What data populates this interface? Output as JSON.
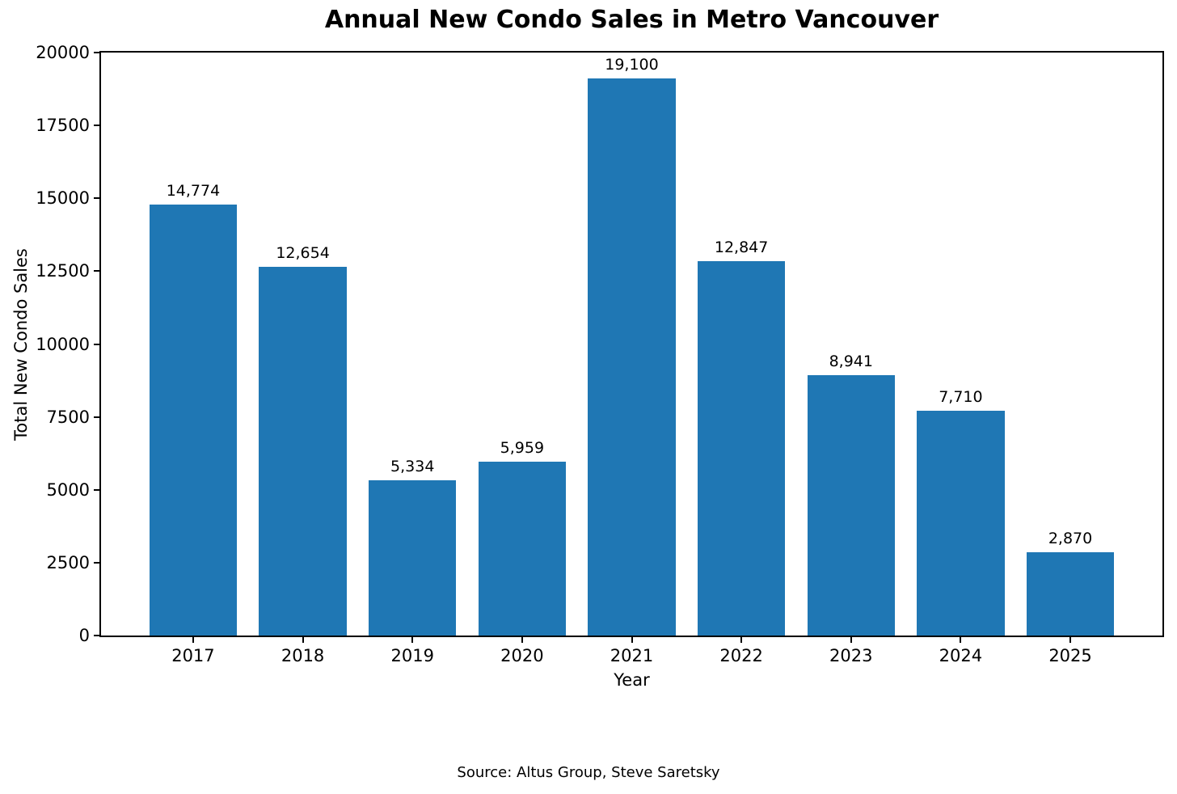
{
  "chart_data": {
    "type": "bar",
    "title": "Annual New Condo Sales in Metro Vancouver",
    "xlabel": "Year",
    "ylabel": "Total New Condo Sales",
    "categories": [
      "2017",
      "2018",
      "2019",
      "2020",
      "2021",
      "2022",
      "2023",
      "2024",
      "2025"
    ],
    "values": [
      14774,
      12654,
      5334,
      5959,
      19100,
      12847,
      8941,
      7710,
      2870
    ],
    "value_labels": [
      "14,774",
      "12,654",
      "5,334",
      "5,959",
      "19,100",
      "12,847",
      "8,941",
      "7,710",
      "2,870"
    ],
    "ylim": [
      0,
      20000
    ],
    "yticks": [
      0,
      2500,
      5000,
      7500,
      10000,
      12500,
      15000,
      17500,
      20000
    ],
    "grid": false,
    "legend": "none",
    "bar_color": "#1f77b4",
    "source": "Source: Altus Group, Steve Saretsky"
  },
  "colors": {
    "bar": "#1f77b4",
    "text": "#000000",
    "background": "#ffffff",
    "axis": "#000000"
  }
}
